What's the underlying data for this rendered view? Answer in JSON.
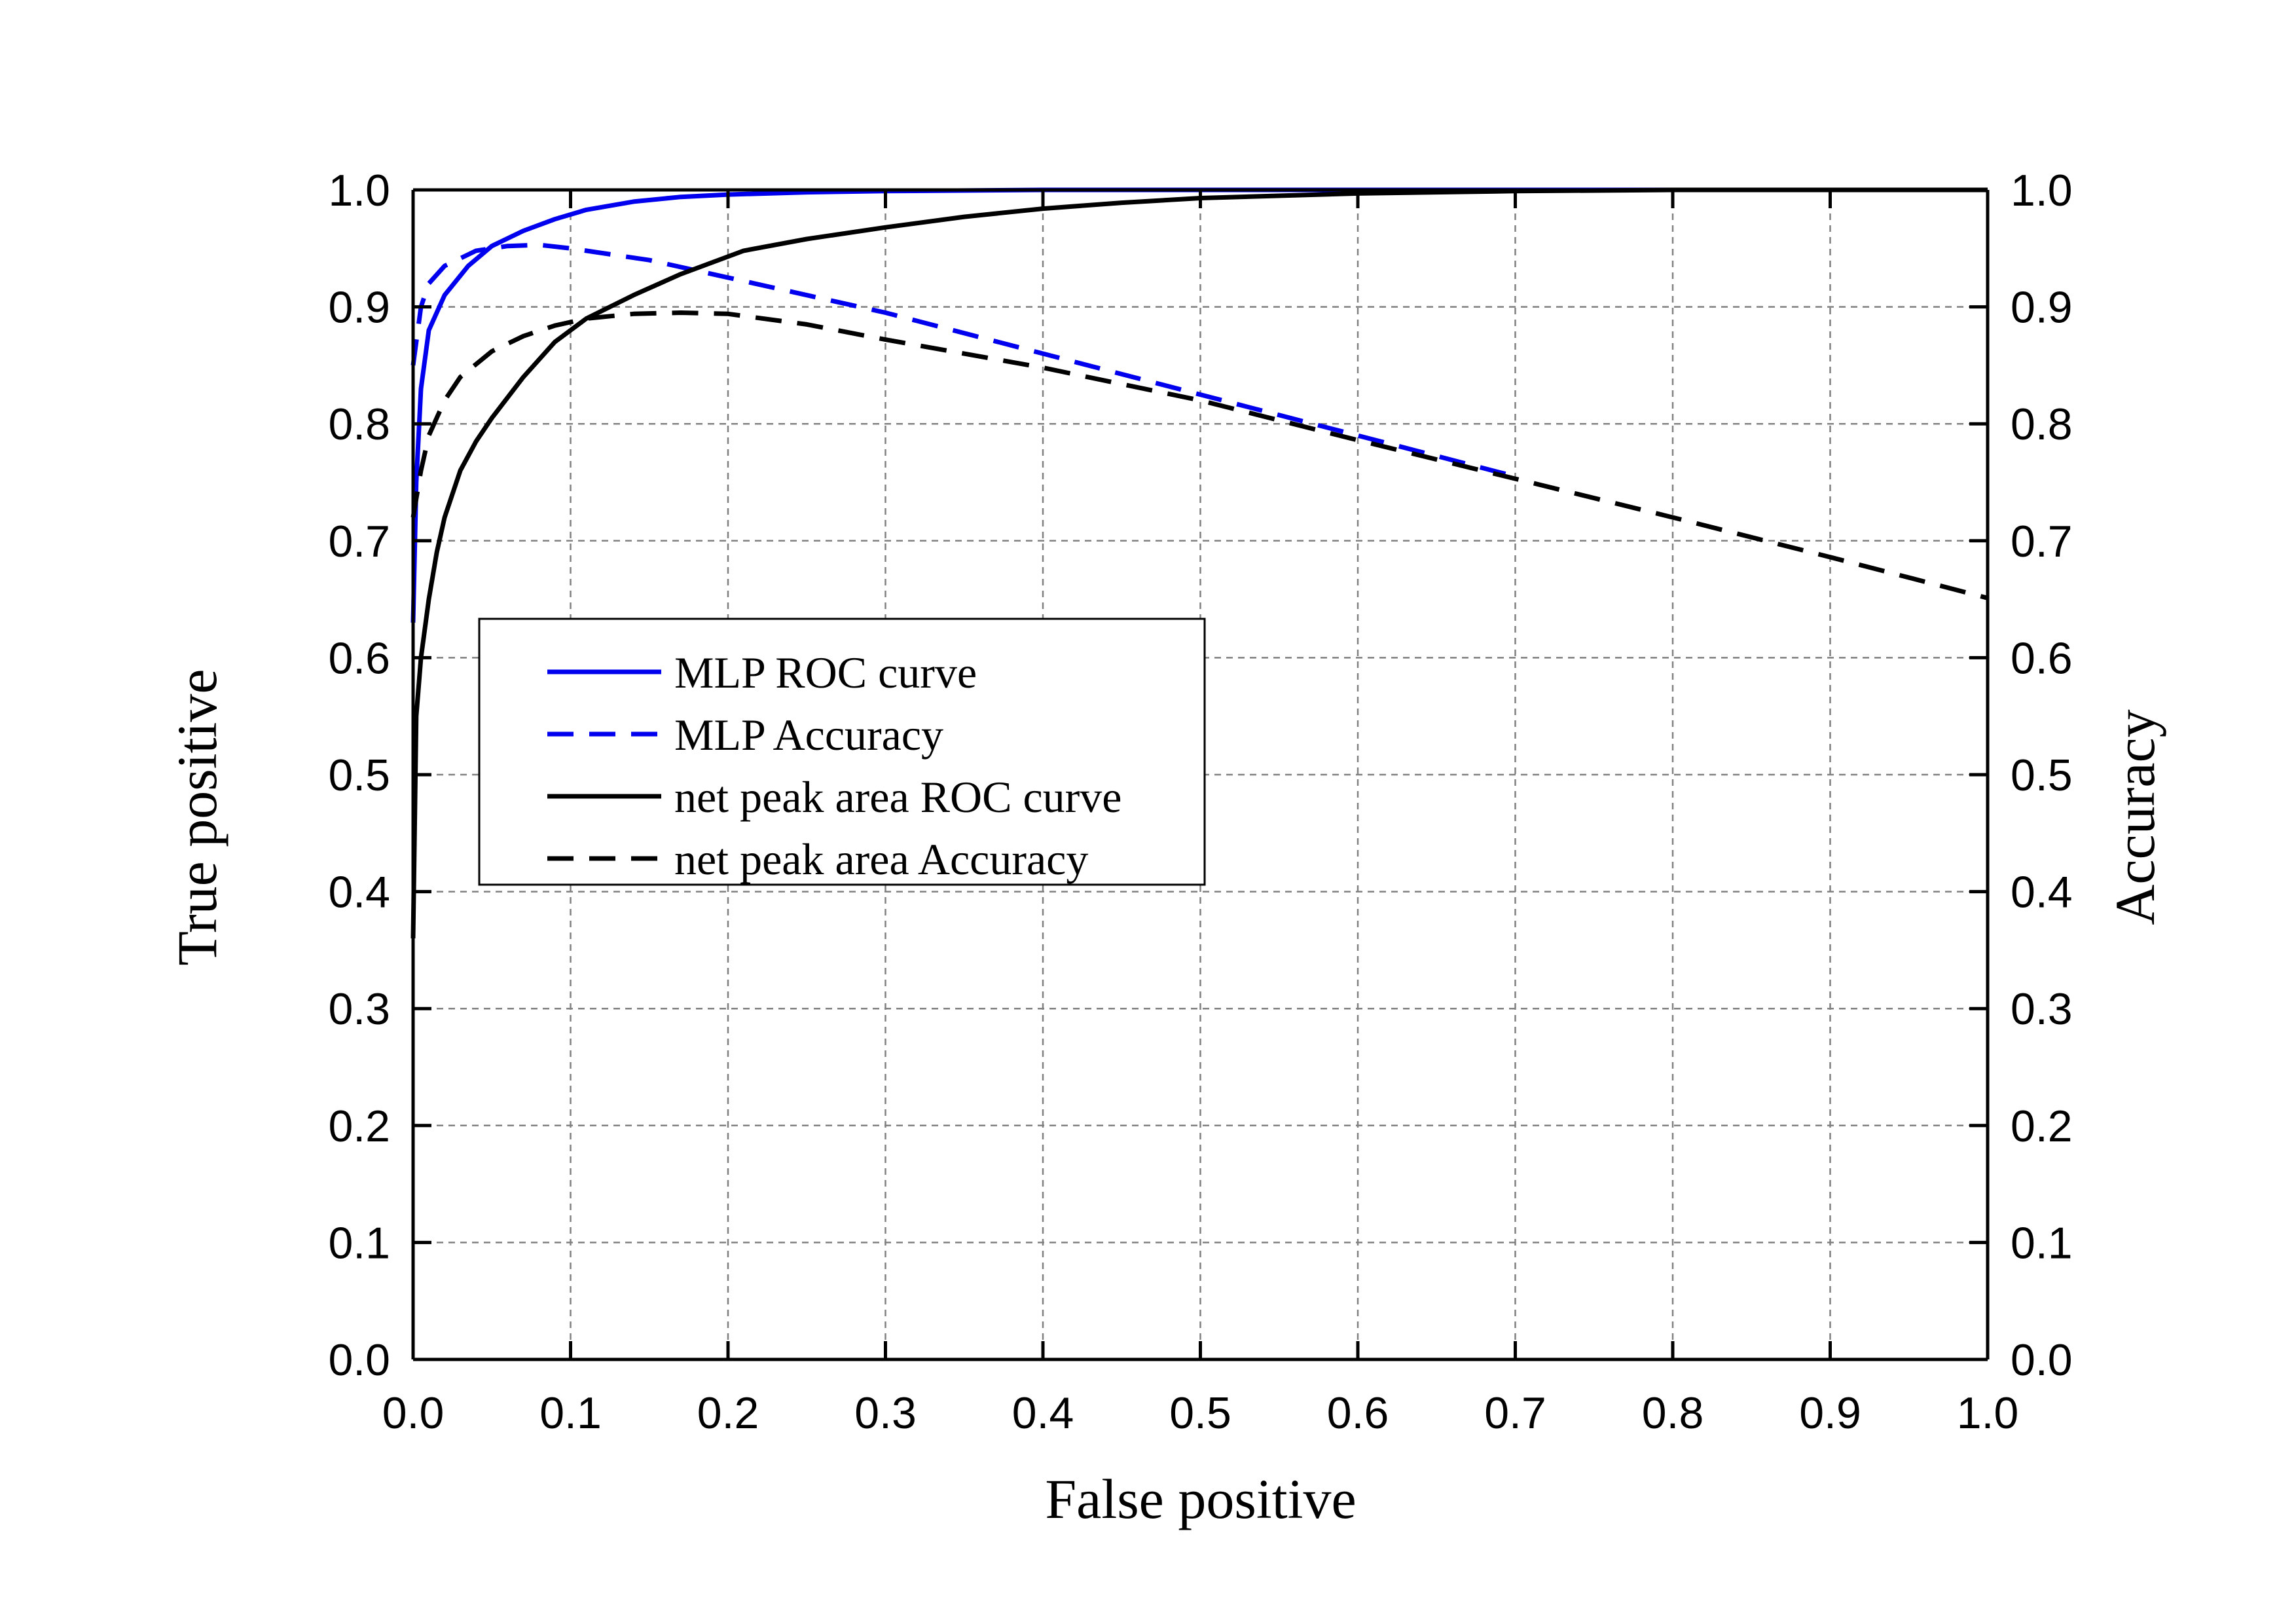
{
  "chart_data": {
    "type": "line",
    "xlabel": "False positive",
    "ylabel": "True positive",
    "y2label": "Accuracy",
    "xlim": [
      0,
      1
    ],
    "ylim": [
      0,
      1
    ],
    "y2lim": [
      0,
      1
    ],
    "grid": true,
    "legend_position": "center-left",
    "x_ticks": [
      "0.0",
      "0.1",
      "0.2",
      "0.3",
      "0.4",
      "0.5",
      "0.6",
      "0.7",
      "0.8",
      "0.9",
      "1.0"
    ],
    "y_ticks": [
      "0.0",
      "0.1",
      "0.2",
      "0.3",
      "0.4",
      "0.5",
      "0.6",
      "0.7",
      "0.8",
      "0.9",
      "1.0"
    ],
    "y2_ticks": [
      "0.0",
      "0.1",
      "0.2",
      "0.3",
      "0.4",
      "0.5",
      "0.6",
      "0.7",
      "0.8",
      "0.9",
      "1.0"
    ],
    "series": [
      {
        "name": "MLP ROC curve",
        "color": "#0000ee",
        "style": "solid",
        "x": [
          0,
          0.002,
          0.005,
          0.01,
          0.02,
          0.035,
          0.05,
          0.07,
          0.09,
          0.11,
          0.14,
          0.17,
          0.2,
          0.25,
          0.3,
          0.4,
          0.5,
          0.7,
          1.0
        ],
        "y": [
          0.63,
          0.75,
          0.83,
          0.88,
          0.91,
          0.935,
          0.952,
          0.965,
          0.975,
          0.983,
          0.99,
          0.994,
          0.996,
          0.998,
          0.999,
          1.0,
          1.0,
          1.0,
          1.0
        ]
      },
      {
        "name": "MLP Accuracy",
        "color": "#0000ee",
        "style": "dashed",
        "x": [
          0,
          0.005,
          0.01,
          0.02,
          0.04,
          0.06,
          0.08,
          0.1,
          0.15,
          0.2,
          0.3,
          0.4,
          0.5,
          0.6,
          0.7
        ],
        "y": [
          0.85,
          0.9,
          0.92,
          0.935,
          0.948,
          0.952,
          0.953,
          0.95,
          0.94,
          0.925,
          0.895,
          0.86,
          0.825,
          0.79,
          0.755
        ]
      },
      {
        "name": "net peak area ROC curve",
        "color": "#000000",
        "style": "solid",
        "x": [
          0,
          0.002,
          0.005,
          0.01,
          0.015,
          0.02,
          0.03,
          0.04,
          0.05,
          0.07,
          0.09,
          0.11,
          0.14,
          0.17,
          0.21,
          0.25,
          0.3,
          0.35,
          0.4,
          0.45,
          0.5,
          0.6,
          0.7,
          0.8,
          1.0
        ],
        "y": [
          0.36,
          0.55,
          0.6,
          0.65,
          0.69,
          0.72,
          0.76,
          0.785,
          0.805,
          0.84,
          0.87,
          0.89,
          0.91,
          0.928,
          0.948,
          0.958,
          0.968,
          0.977,
          0.984,
          0.989,
          0.993,
          0.997,
          0.999,
          1.0,
          1.0
        ]
      },
      {
        "name": "net peak area Accuracy",
        "color": "#000000",
        "style": "dashed",
        "x": [
          0,
          0.005,
          0.01,
          0.02,
          0.03,
          0.05,
          0.07,
          0.09,
          0.11,
          0.14,
          0.17,
          0.2,
          0.25,
          0.3,
          0.4,
          0.5,
          0.6,
          0.7,
          0.8,
          0.9,
          1.0
        ],
        "y": [
          0.72,
          0.76,
          0.79,
          0.82,
          0.84,
          0.862,
          0.875,
          0.884,
          0.89,
          0.894,
          0.895,
          0.894,
          0.885,
          0.872,
          0.848,
          0.82,
          0.786,
          0.753,
          0.72,
          0.686,
          0.651
        ]
      }
    ]
  }
}
